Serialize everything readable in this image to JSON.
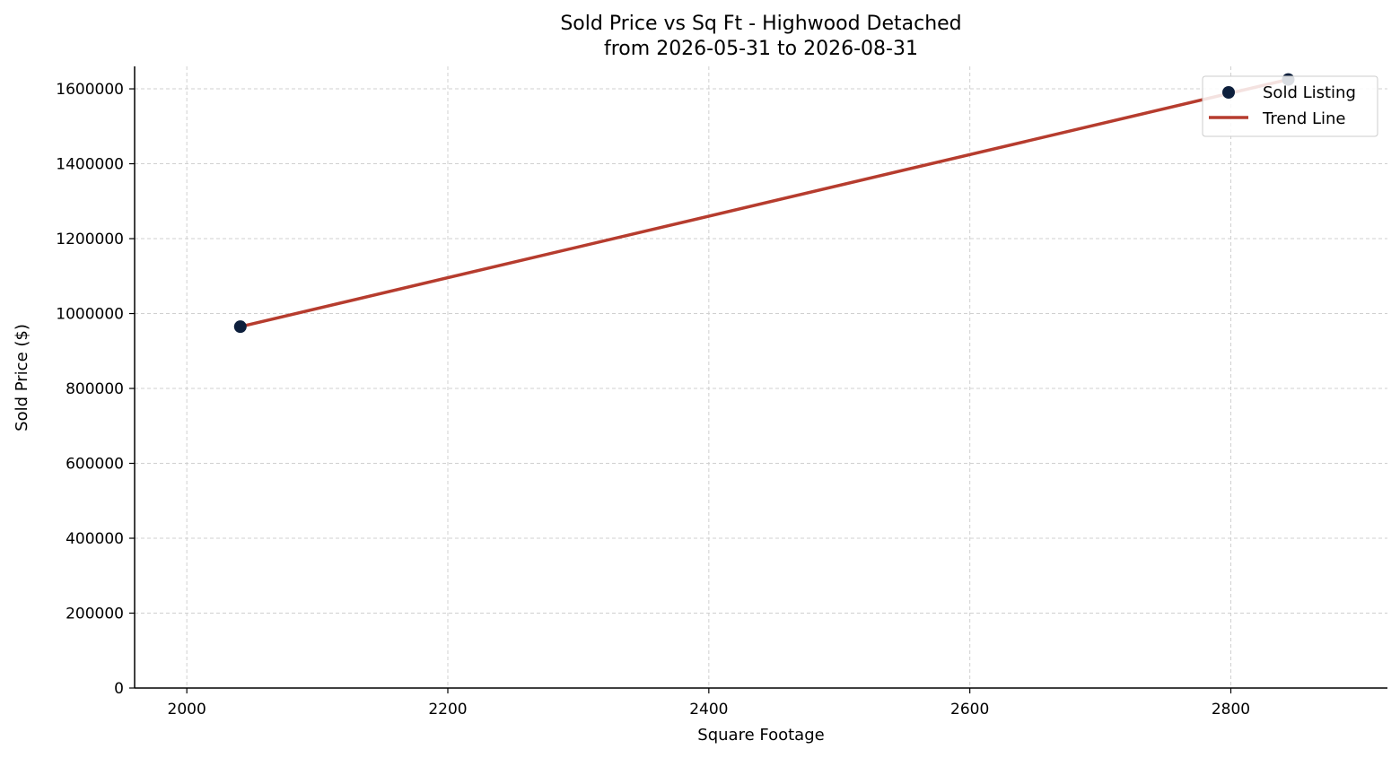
{
  "chart_data": {
    "type": "scatter",
    "title_line1": "Sold Price vs Sq Ft - Highwood Detached",
    "title_line2": "from 2026-05-31 to 2026-08-31",
    "xlabel": "Square Footage",
    "ylabel": "Sold Price ($)",
    "xlim": [
      1960,
      2920
    ],
    "ylim": [
      0,
      1660000
    ],
    "x_ticks": [
      2000,
      2200,
      2400,
      2600,
      2800
    ],
    "y_ticks": [
      0,
      200000,
      400000,
      600000,
      800000,
      1000000,
      1200000,
      1400000,
      1600000
    ],
    "grid": true,
    "legend_position": "top-right",
    "series": [
      {
        "name": "Sold Listing",
        "kind": "scatter",
        "color": "#0d1f3c",
        "points": [
          {
            "x": 2041,
            "y": 965000
          },
          {
            "x": 2844,
            "y": 1625000
          }
        ]
      },
      {
        "name": "Trend Line",
        "kind": "line",
        "color": "#b63c2e",
        "points": [
          {
            "x": 2041,
            "y": 965000
          },
          {
            "x": 2844,
            "y": 1625000
          }
        ]
      }
    ]
  }
}
